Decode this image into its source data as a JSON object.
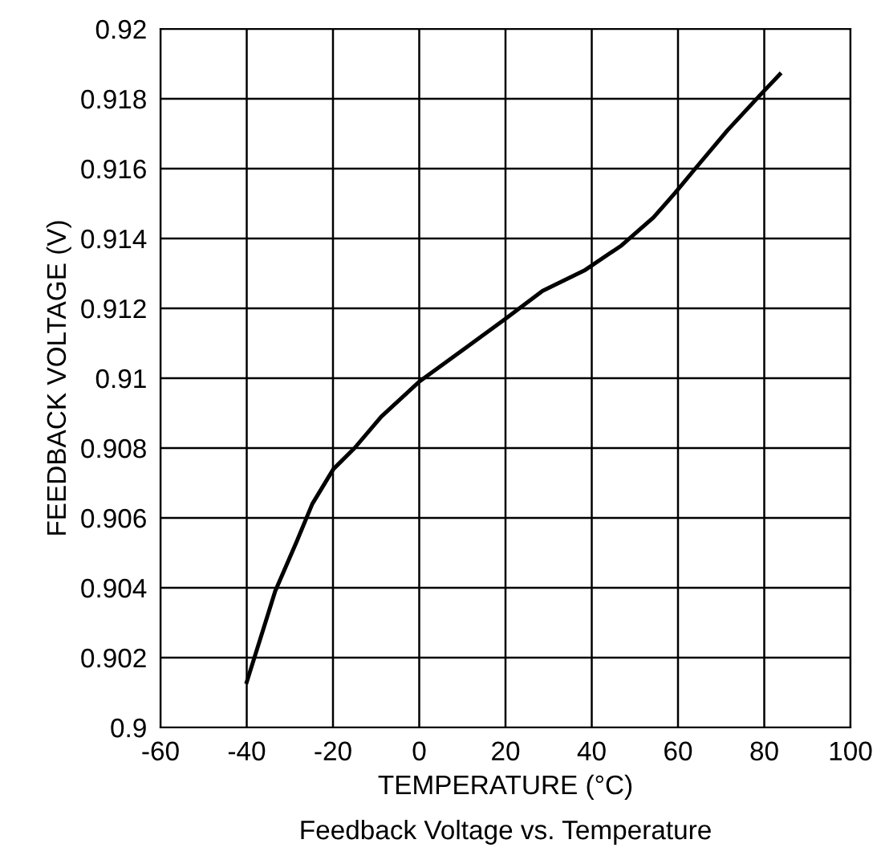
{
  "chart_data": {
    "type": "line",
    "title": "Feedback Voltage vs. Temperature",
    "xlabel": "TEMPERATURE (°C)",
    "ylabel": "FEEDBACK VOLTAGE (V)",
    "series": [
      {
        "color": "#000000",
        "x": [
          -40,
          -33.4,
          -28.5,
          -24.8,
          -19.9,
          -15,
          -8.8,
          0,
          10,
          20,
          28.6,
          38.5,
          46.9,
          54.3,
          59.3,
          64,
          71.5,
          79,
          83.6
        ],
        "values": [
          0.9013,
          0.9039,
          0.9053,
          0.9064,
          0.9074,
          0.908,
          0.9089,
          0.9099,
          0.9108,
          0.9117,
          0.9125,
          0.9131,
          0.9138,
          0.9146,
          0.9153,
          0.916,
          0.9171,
          0.9181,
          0.9187
        ]
      }
    ],
    "xlim": [
      -60,
      100
    ],
    "xticks": [
      -60,
      -40,
      -20,
      0,
      20,
      40,
      60,
      80,
      100
    ],
    "ylim": [
      0.9,
      0.92
    ],
    "yticks": [
      0.9,
      0.902,
      0.904,
      0.906,
      0.908,
      0.91,
      0.912,
      0.914,
      0.916,
      0.918,
      0.92
    ],
    "grid": true,
    "marker": "none",
    "line_style": "solid"
  }
}
